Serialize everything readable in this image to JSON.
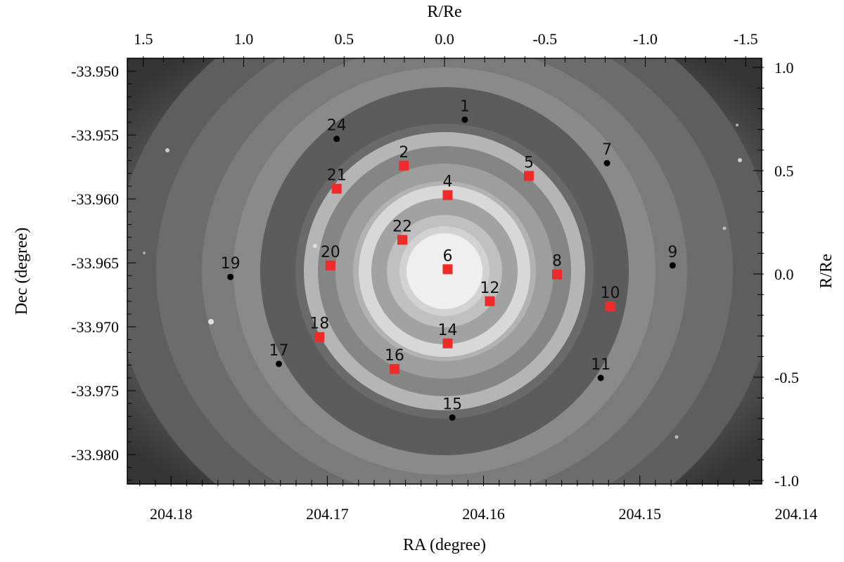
{
  "chart_data": {
    "type": "scatter",
    "title": "",
    "xlabel": "RA (degree)",
    "ylabel": "Dec (degree)",
    "x2label": "R/Re",
    "y2label": "R/Re",
    "xlim": [
      204.1828,
      204.1422
    ],
    "ylim": [
      -33.9823,
      -33.949
    ],
    "x_ticks": [
      204.18,
      204.17,
      204.16,
      204.15,
      204.14
    ],
    "y_ticks": [
      -33.95,
      -33.955,
      -33.96,
      -33.965,
      -33.97,
      -33.975,
      -33.98
    ],
    "x2_ticks": [
      "1.5",
      "1.0",
      "0.5",
      "0.0",
      "-0.5",
      "-1.0",
      "-1.5"
    ],
    "y2_ticks": [
      "1.0",
      "0.5",
      "0.0",
      "-0.5",
      "-1.0"
    ],
    "background": "grayscale galaxy image with concentric elliptical contour rings",
    "series": [
      {
        "marker": "square",
        "color": "#ee2b2b",
        "points": [
          {
            "label": "2",
            "x": 204.1651,
            "y": -33.9574
          },
          {
            "label": "5",
            "x": 204.1571,
            "y": -33.9582
          },
          {
            "label": "4",
            "x": 204.1623,
            "y": -33.9597
          },
          {
            "label": "21",
            "x": 204.1694,
            "y": -33.9592
          },
          {
            "label": "22",
            "x": 204.1652,
            "y": -33.9632
          },
          {
            "label": "20",
            "x": 204.1698,
            "y": -33.9652
          },
          {
            "label": "6",
            "x": 204.1623,
            "y": -33.9655
          },
          {
            "label": "8",
            "x": 204.1553,
            "y": -33.9659
          },
          {
            "label": "12",
            "x": 204.1596,
            "y": -33.968
          },
          {
            "label": "10",
            "x": 204.1519,
            "y": -33.9684
          },
          {
            "label": "18",
            "x": 204.1705,
            "y": -33.9708
          },
          {
            "label": "14",
            "x": 204.1623,
            "y": -33.9713
          },
          {
            "label": "16",
            "x": 204.1657,
            "y": -33.9733
          }
        ]
      },
      {
        "marker": "circle",
        "color": "#000000",
        "points": [
          {
            "label": "1",
            "x": 204.1612,
            "y": -33.9538
          },
          {
            "label": "24",
            "x": 204.1694,
            "y": -33.9553
          },
          {
            "label": "7",
            "x": 204.1521,
            "y": -33.9572
          },
          {
            "label": "9",
            "x": 204.1479,
            "y": -33.9652
          },
          {
            "label": "19",
            "x": 204.1762,
            "y": -33.9661
          },
          {
            "label": "17",
            "x": 204.1731,
            "y": -33.9729
          },
          {
            "label": "11",
            "x": 204.1525,
            "y": -33.974
          },
          {
            "label": "15",
            "x": 204.162,
            "y": -33.9771
          }
        ]
      }
    ]
  }
}
